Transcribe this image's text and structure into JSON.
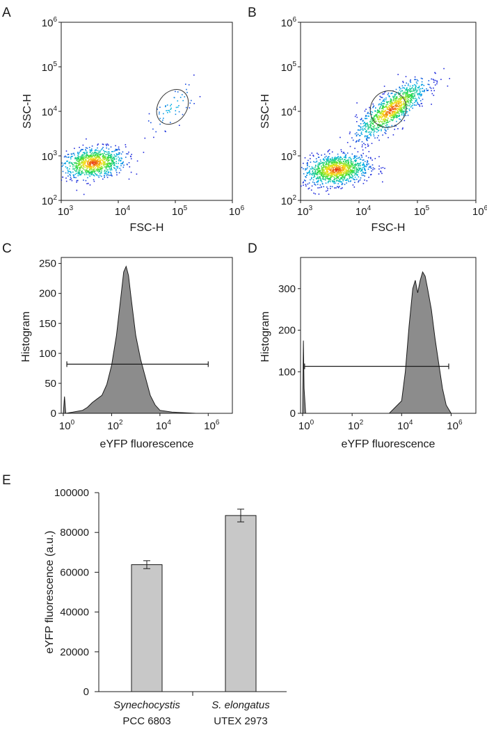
{
  "colors": {
    "bar_fill": "#c8c8c8",
    "hist_fill": "#8c8c8c",
    "axis": "#1a1a1a"
  },
  "chart_data": [
    {
      "panel": "A",
      "type": "scatter",
      "xlabel": "FSC-H",
      "ylabel": "SSC-H",
      "x_scale": "log",
      "y_scale": "log",
      "xlim": [
        1000,
        1000000
      ],
      "ylim": [
        100,
        1000000
      ],
      "x_ticks": [
        {
          "base": "10",
          "exp": "3"
        },
        {
          "base": "10",
          "exp": "4"
        },
        {
          "base": "10",
          "exp": "5"
        },
        {
          "base": "10",
          "exp": "6"
        }
      ],
      "y_ticks": [
        {
          "base": "10",
          "exp": "2"
        },
        {
          "base": "10",
          "exp": "3"
        },
        {
          "base": "10",
          "exp": "4"
        },
        {
          "base": "10",
          "exp": "5"
        },
        {
          "base": "10",
          "exp": "6"
        }
      ],
      "clusters": [
        {
          "label": "debris",
          "center_log": [
            3.55,
            2.85
          ],
          "n": 900
        },
        {
          "label": "cells",
          "center_log": [
            4.95,
            4.1
          ],
          "n": 60
        }
      ],
      "gate": {
        "center_log": [
          4.95,
          4.1
        ],
        "radius_log": [
          0.25,
          0.42
        ]
      }
    },
    {
      "panel": "B",
      "type": "scatter",
      "xlabel": "FSC-H",
      "ylabel": "SSC-H",
      "x_scale": "log",
      "y_scale": "log",
      "xlim": [
        1000,
        1000000
      ],
      "ylim": [
        100,
        1000000
      ],
      "x_ticks": [
        {
          "base": "10",
          "exp": "3"
        },
        {
          "base": "10",
          "exp": "4"
        },
        {
          "base": "10",
          "exp": "5"
        },
        {
          "base": "10",
          "exp": "6"
        }
      ],
      "y_ticks": [
        {
          "base": "10",
          "exp": "2"
        },
        {
          "base": "10",
          "exp": "3"
        },
        {
          "base": "10",
          "exp": "4"
        },
        {
          "base": "10",
          "exp": "5"
        },
        {
          "base": "10",
          "exp": "6"
        }
      ],
      "clusters": [
        {
          "label": "debris",
          "center_log": [
            3.6,
            2.7
          ],
          "n": 1100
        },
        {
          "label": "cells",
          "center_log": [
            4.55,
            4.05
          ],
          "n": 1000
        }
      ],
      "gate": {
        "center_log": [
          4.5,
          4.05
        ],
        "radius_log": [
          0.3,
          0.42
        ]
      }
    },
    {
      "panel": "C",
      "type": "area",
      "xlabel": "eYFP fluorescence",
      "ylabel": "Histogram",
      "x_scale": "log",
      "xlim": [
        1,
        10000000
      ],
      "ylim": [
        0,
        260
      ],
      "x_ticks": [
        {
          "base": "10",
          "exp": "0"
        },
        {
          "base": "10",
          "exp": "2"
        },
        {
          "base": "10",
          "exp": "4"
        },
        {
          "base": "10",
          "exp": "6"
        }
      ],
      "y_ticks": [
        0,
        50,
        100,
        150,
        200,
        250
      ],
      "x_log": [
        0,
        0.05,
        0.1,
        0.4,
        0.8,
        1.0,
        1.2,
        1.4,
        1.6,
        1.8,
        2.0,
        2.2,
        2.4,
        2.5,
        2.6,
        2.7,
        2.8,
        3.0,
        3.2,
        3.4,
        3.6,
        3.8,
        4.0,
        4.5,
        5.0,
        5.5,
        6.0,
        6.5
      ],
      "values": [
        0,
        28,
        0,
        2,
        5,
        10,
        18,
        24,
        30,
        48,
        80,
        130,
        200,
        236,
        245,
        230,
        195,
        130,
        90,
        60,
        30,
        14,
        5,
        2,
        1,
        0,
        0,
        0
      ],
      "gate": {
        "x_from": 1.4,
        "x_to": 1000000,
        "y": 82
      }
    },
    {
      "panel": "D",
      "type": "area",
      "xlabel": "eYFP fluorescence",
      "ylabel": "Histogram",
      "x_scale": "log",
      "xlim": [
        1,
        10000000
      ],
      "ylim": [
        0,
        375
      ],
      "x_ticks": [
        {
          "base": "10",
          "exp": "0"
        },
        {
          "base": "10",
          "exp": "2"
        },
        {
          "base": "10",
          "exp": "4"
        },
        {
          "base": "10",
          "exp": "6"
        }
      ],
      "y_ticks": [
        0,
        100,
        200,
        300
      ],
      "x_log": [
        0,
        0.03,
        0.06,
        0.12,
        0.3,
        3.5,
        4.0,
        4.15,
        4.3,
        4.45,
        4.55,
        4.65,
        4.75,
        4.85,
        4.95,
        5.05,
        5.2,
        5.35,
        5.5,
        5.65,
        5.8,
        6.0,
        6.5
      ],
      "values": [
        0,
        175,
        60,
        0,
        0,
        0,
        30,
        100,
        210,
        300,
        320,
        290,
        320,
        340,
        330,
        300,
        250,
        180,
        120,
        60,
        20,
        0,
        0
      ],
      "gate": {
        "x_from": 1.2,
        "x_to": 800000,
        "y": 113
      }
    },
    {
      "panel": "E",
      "type": "bar",
      "ylabel": "eYFP fluorescence (a.u.)",
      "ylim": [
        0,
        100000
      ],
      "y_ticks": [
        "0",
        "20000",
        "40000",
        "60000",
        "80000",
        "100000"
      ],
      "y_tick_values": [
        0,
        20000,
        40000,
        60000,
        80000,
        100000
      ],
      "categories": [
        {
          "name": "Synechocystis",
          "strain": "PCC 6803"
        },
        {
          "name": "S. elongatus",
          "strain": "UTEX 2973"
        }
      ],
      "values": [
        63800,
        88500
      ],
      "errors": [
        2000,
        3200
      ]
    }
  ]
}
